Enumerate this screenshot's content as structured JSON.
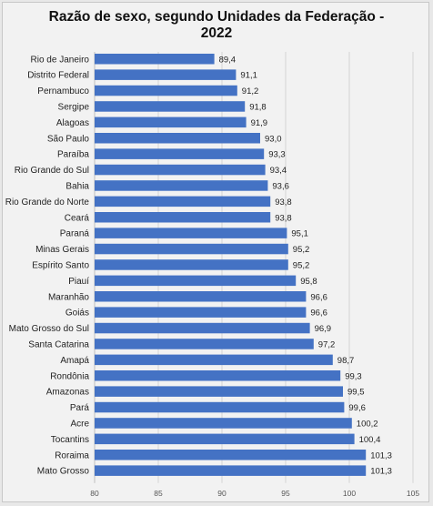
{
  "chart_data": {
    "type": "bar",
    "orientation": "horizontal",
    "title": "Razão de sexo, segundo Unidades da Federação -\n2022",
    "xlim": [
      80,
      105
    ],
    "x_ticks": [
      80,
      85,
      90,
      95,
      100,
      105
    ],
    "grid": true,
    "bar_color": "#4472c4",
    "categories": [
      "Rio de Janeiro",
      "Distrito Federal",
      "Pernambuco",
      "Sergipe",
      "Alagoas",
      "São Paulo",
      "Paraíba",
      "Rio Grande do Sul",
      "Bahia",
      "Rio Grande do Norte",
      "Ceará",
      "Paraná",
      "Minas Gerais",
      "Espírito Santo",
      "Piauí",
      "Maranhão",
      "Goiás",
      "Mato Grosso do Sul",
      "Santa Catarina",
      "Amapá",
      "Rondônia",
      "Amazonas",
      "Pará",
      "Acre",
      "Tocantins",
      "Roraima",
      "Mato Grosso"
    ],
    "values": [
      89.4,
      91.1,
      91.2,
      91.8,
      91.9,
      93.0,
      93.3,
      93.4,
      93.6,
      93.8,
      93.8,
      95.1,
      95.2,
      95.2,
      95.8,
      96.6,
      96.6,
      96.9,
      97.2,
      98.7,
      99.3,
      99.5,
      99.6,
      100.2,
      100.4,
      101.3,
      101.3
    ],
    "value_labels": [
      "89,4",
      "91,1",
      "91,2",
      "91,8",
      "91,9",
      "93,0",
      "93,3",
      "93,4",
      "93,6",
      "93,8",
      "93,8",
      "95,1",
      "95,2",
      "95,2",
      "95,8",
      "96,6",
      "96,6",
      "96,9",
      "97,2",
      "98,7",
      "99,3",
      "99,5",
      "99,6",
      "100,2",
      "100,4",
      "101,3",
      "101,3"
    ]
  }
}
